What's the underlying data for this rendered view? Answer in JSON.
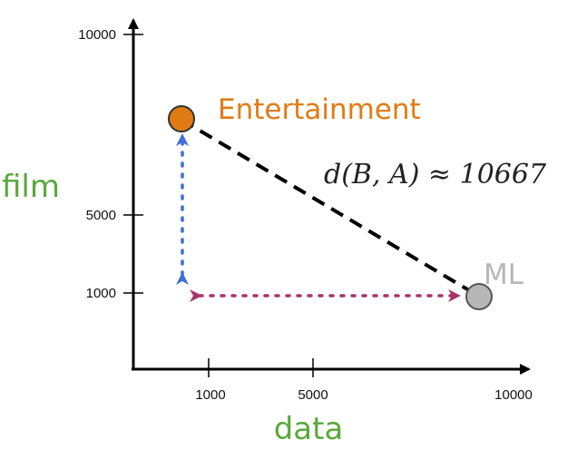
{
  "axes": {
    "x_title": "data",
    "y_title": "film",
    "x_ticks": [
      "1000",
      "5000",
      "10000"
    ],
    "y_ticks": [
      "1000",
      "5000",
      "10000"
    ],
    "title_color": "#5aa83c"
  },
  "points": {
    "entertainment": {
      "label": "Entertainment",
      "color": "#e07b14"
    },
    "ml": {
      "label": "ML",
      "color": "#b7b7b7"
    }
  },
  "distance": {
    "formula": "d(B, A) ≈ 10667",
    "line_color": "#000000"
  },
  "components": {
    "vertical_color": "#3f6fd8",
    "horizontal_color": "#a8336b"
  }
}
